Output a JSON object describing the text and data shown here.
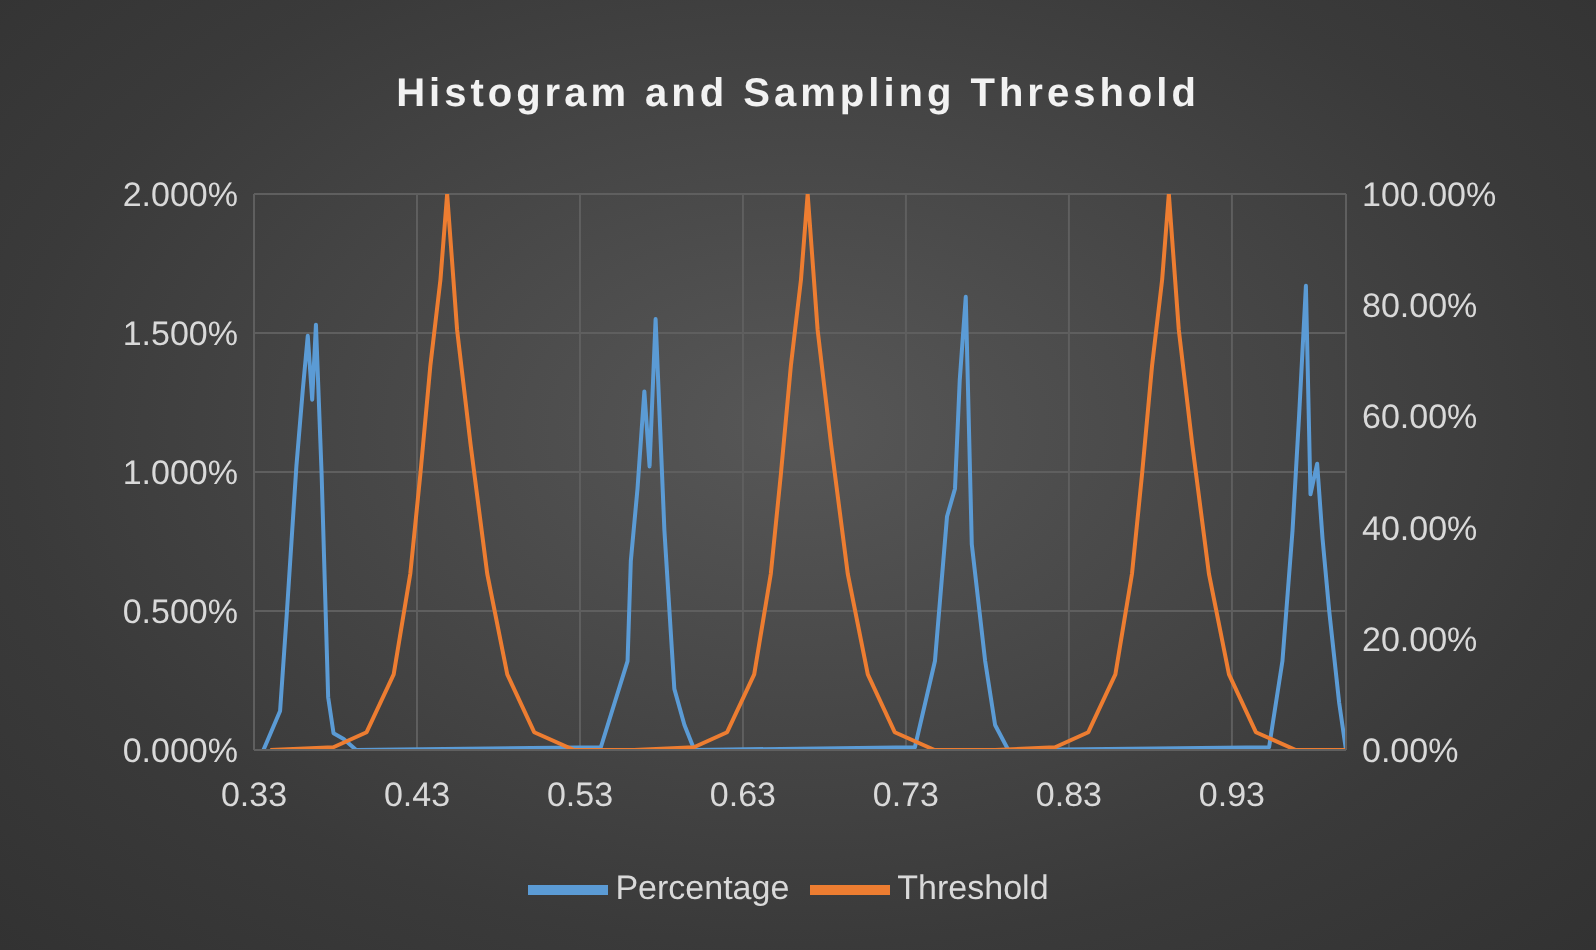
{
  "chart_data": {
    "type": "line",
    "title": "Histogram and Sampling Threshold",
    "xlim": [
      0.33,
      1.0
    ],
    "xticks": [
      0.33,
      0.43,
      0.53,
      0.63,
      0.73,
      0.83,
      0.93
    ],
    "ylim": [
      0,
      2
    ],
    "yticks": [
      {
        "value": 0,
        "label": "0.000%"
      },
      {
        "value": 0.5,
        "label": "0.500%"
      },
      {
        "value": 1,
        "label": "1.000%"
      },
      {
        "value": 1.5,
        "label": "1.500%"
      },
      {
        "value": 2,
        "label": "2.000%"
      }
    ],
    "y2lim": [
      0,
      100
    ],
    "y2ticks": [
      {
        "value": 0,
        "label": "0.00%"
      },
      {
        "value": 20,
        "label": "20.00%"
      },
      {
        "value": 40,
        "label": "40.00%"
      },
      {
        "value": 60,
        "label": "60.00%"
      },
      {
        "value": 80,
        "label": "80.00%"
      },
      {
        "value": 100,
        "label": "100.00%"
      }
    ],
    "grid": true,
    "legend": "bottom",
    "marker": "none",
    "line_style": "solid",
    "series": [
      {
        "name": "Percentage",
        "color": "#5b9bd5",
        "x": [
          0.3358,
          0.346,
          0.35,
          0.356,
          0.36,
          0.363,
          0.3657,
          0.368,
          0.3715,
          0.3755,
          0.3788,
          0.385,
          0.3927,
          0.5428,
          0.5592,
          0.5612,
          0.5653,
          0.5695,
          0.5727,
          0.5764,
          0.5818,
          0.5879,
          0.5941,
          0.6002,
          0.7355,
          0.7478,
          0.7552,
          0.7601,
          0.763,
          0.7667,
          0.7704,
          0.7786,
          0.7847,
          0.7928,
          0.9528,
          0.961,
          0.9672,
          0.9712,
          0.9754,
          0.9782,
          0.9823,
          0.9856,
          0.9897,
          0.9958,
          1.0
        ],
        "values": [
          0,
          0.14,
          0.48,
          1.02,
          1.3,
          1.49,
          1.26,
          1.53,
          0.99,
          0.19,
          0.06,
          0.04,
          0,
          0.01,
          0.32,
          0.68,
          0.94,
          1.29,
          1.02,
          1.55,
          0.79,
          0.22,
          0.09,
          0,
          0.01,
          0.32,
          0.84,
          0.94,
          1.33,
          1.63,
          0.74,
          0.32,
          0.09,
          0,
          0.01,
          0.32,
          0.79,
          1.2,
          1.67,
          0.92,
          1.03,
          0.76,
          0.5,
          0.17,
          0
        ]
      },
      {
        "name": "Threshold",
        "color": "#ed7d31",
        "axis": "y2",
        "x": [
          0.34,
          0.3787,
          0.3991,
          0.4157,
          0.4259,
          0.4321,
          0.4382,
          0.4444,
          0.4485,
          0.4546,
          0.4629,
          0.4731,
          0.4854,
          0.5019,
          0.5264,
          0.5632,
          0.5999,
          0.6203,
          0.6369,
          0.6471,
          0.6533,
          0.6594,
          0.6656,
          0.6697,
          0.6758,
          0.6841,
          0.6943,
          0.7066,
          0.7231,
          0.7476,
          0.7848,
          0.8215,
          0.8419,
          0.8585,
          0.8687,
          0.8749,
          0.881,
          0.8872,
          0.8913,
          0.8974,
          0.9057,
          0.9159,
          0.9282,
          0.9447,
          0.9692,
          1.0
        ],
        "values": [
          0,
          0.5,
          3.2,
          13.6,
          31.7,
          49.7,
          69.1,
          84.6,
          100,
          75.6,
          54.9,
          31.7,
          13.6,
          3.2,
          0,
          0,
          0.5,
          3.2,
          13.6,
          31.7,
          49.7,
          69.1,
          84.6,
          100,
          75.6,
          54.9,
          31.7,
          13.6,
          3.2,
          0,
          0,
          0.5,
          3.2,
          13.6,
          31.7,
          49.7,
          69.1,
          84.6,
          100,
          75.6,
          54.9,
          31.7,
          13.6,
          3.2,
          0,
          0
        ]
      }
    ]
  }
}
